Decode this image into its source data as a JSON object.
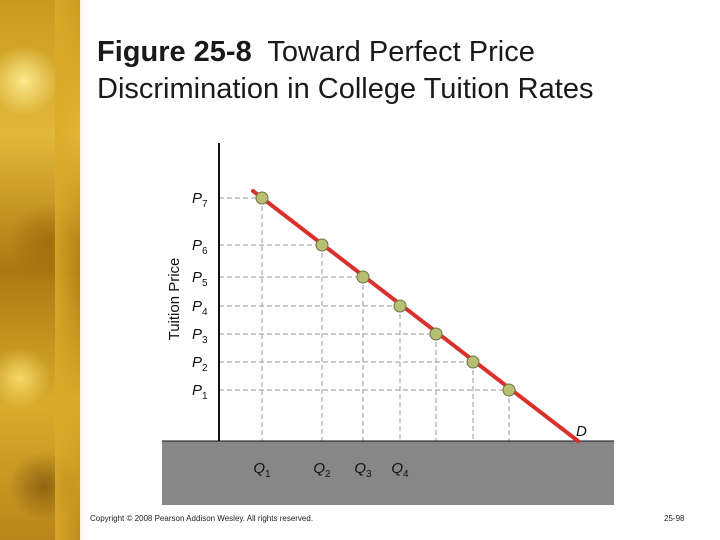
{
  "title": {
    "figure_label": "Figure 25-8",
    "text": "Toward Perfect Price Discrimination in College Tuition Rates"
  },
  "axis": {
    "y_label": "Tuition Price"
  },
  "prices": [
    {
      "label": "P",
      "sub": "7"
    },
    {
      "label": "P",
      "sub": "6"
    },
    {
      "label": "P",
      "sub": "5"
    },
    {
      "label": "P",
      "sub": "4"
    },
    {
      "label": "P",
      "sub": "3"
    },
    {
      "label": "P",
      "sub": "2"
    },
    {
      "label": "P",
      "sub": "1"
    }
  ],
  "quantities": [
    {
      "label": "Q",
      "sub": "1"
    },
    {
      "label": "Q",
      "sub": "2"
    },
    {
      "label": "Q",
      "sub": "3"
    },
    {
      "label": "Q",
      "sub": "4"
    }
  ],
  "demand_label": "D",
  "colors": {
    "demand_line": "#d9302b",
    "point_fill": "#b9bf72",
    "point_stroke": "#6d7040",
    "axis": "#111111",
    "guide": "#9a9a9a",
    "ground": "#878787"
  },
  "footer": {
    "copyright": "Copyright © 2008 Pearson Addison Wesley. All rights reserved.",
    "page": "25-98"
  }
}
